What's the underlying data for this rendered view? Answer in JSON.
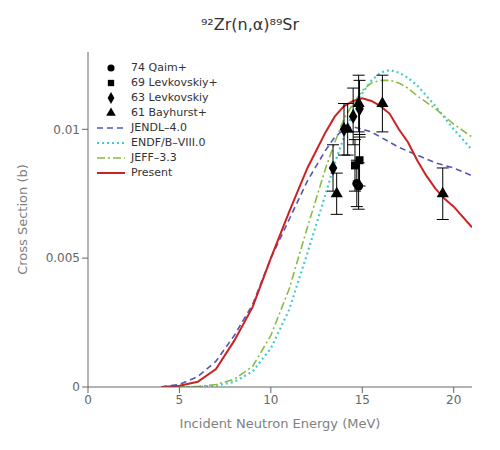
{
  "chart_data": {
    "type": "line",
    "title": "⁹²Zr(n,α)⁸⁹Sr",
    "xlabel": "Incident Neutron Energy (MeV)",
    "ylabel": "Cross Section (b)",
    "xlim": [
      0,
      21
    ],
    "ylim": [
      0,
      0.013
    ],
    "xticks": [
      0,
      5,
      10,
      15,
      20
    ],
    "yticks": [
      0,
      0.005,
      0.01
    ],
    "grid": false,
    "legend": "upper left",
    "series": [
      {
        "name": "JENDL–4.0",
        "type": "line",
        "color": "#5555bb",
        "line_style": "dashed",
        "x": [
          4.0,
          5.0,
          6.0,
          7.0,
          8.0,
          9.0,
          10.0,
          11.0,
          12.0,
          13.0,
          13.5,
          14.0,
          14.5,
          15.0,
          15.5,
          16.0,
          17.0,
          18.0,
          19.0,
          20.0,
          21.0
        ],
        "values": [
          0.0,
          0.0001,
          0.0004,
          0.001,
          0.002,
          0.0032,
          0.005,
          0.0065,
          0.008,
          0.0092,
          0.0097,
          0.01,
          0.0101,
          0.01,
          0.0099,
          0.0097,
          0.0093,
          0.009,
          0.0087,
          0.0085,
          0.0082
        ]
      },
      {
        "name": "ENDF/B–VIII.0",
        "type": "line",
        "color": "#44cccc",
        "line_style": "dotted",
        "x": [
          4.0,
          5.0,
          6.0,
          7.0,
          8.0,
          9.0,
          10.0,
          11.0,
          12.0,
          13.0,
          13.5,
          14.0,
          14.5,
          15.0,
          15.5,
          16.0,
          16.5,
          17.0,
          17.5,
          18.0,
          18.5,
          19.0,
          20.0,
          21.0
        ],
        "values": [
          0.0,
          0.0,
          0.0,
          5e-05,
          0.0002,
          0.0006,
          0.0015,
          0.003,
          0.0052,
          0.0075,
          0.0087,
          0.0097,
          0.0107,
          0.0114,
          0.0119,
          0.0122,
          0.0123,
          0.0122,
          0.012,
          0.0117,
          0.0113,
          0.0109,
          0.01,
          0.0092
        ]
      },
      {
        "name": "JEFF–3.3",
        "type": "line",
        "color": "#88bb44",
        "line_style": "dashdot",
        "x": [
          4.0,
          5.0,
          6.0,
          7.0,
          8.0,
          9.0,
          10.0,
          11.0,
          12.0,
          13.0,
          13.5,
          14.0,
          14.5,
          15.0,
          15.5,
          16.0,
          16.5,
          17.0,
          17.5,
          18.0,
          19.0,
          20.0,
          21.0
        ],
        "values": [
          0.0,
          0.0,
          2e-05,
          0.0001,
          0.0003,
          0.0008,
          0.002,
          0.0038,
          0.0062,
          0.0085,
          0.0095,
          0.0104,
          0.011,
          0.0115,
          0.0118,
          0.0119,
          0.0119,
          0.0118,
          0.0116,
          0.0113,
          0.0108,
          0.0102,
          0.0097
        ]
      },
      {
        "name": "Present",
        "type": "line",
        "color": "#cc2222",
        "line_style": "solid",
        "x": [
          4.0,
          5.0,
          6.0,
          7.0,
          8.0,
          9.0,
          10.0,
          11.0,
          12.0,
          12.5,
          13.0,
          13.5,
          14.0,
          14.5,
          15.0,
          15.5,
          16.0,
          16.5,
          17.0,
          17.5,
          18.0,
          18.5,
          19.0,
          19.5,
          20.0,
          21.0
        ],
        "values": [
          0.0,
          5e-05,
          0.0002,
          0.0007,
          0.0018,
          0.0031,
          0.005,
          0.0068,
          0.0085,
          0.0092,
          0.0099,
          0.0105,
          0.0109,
          0.0111,
          0.0112,
          0.0111,
          0.0109,
          0.0106,
          0.01,
          0.0095,
          0.0088,
          0.0082,
          0.0077,
          0.0073,
          0.007,
          0.0062
        ]
      },
      {
        "name": "74 Qaim+",
        "type": "scatter",
        "color": "black",
        "marker": "circle",
        "x": [
          14.7,
          14.8
        ],
        "values": [
          0.0079,
          0.0078
        ],
        "yerr": [
          0.0009,
          0.0009
        ]
      },
      {
        "name": "69 Levkovskiy+",
        "type": "scatter",
        "color": "black",
        "marker": "square",
        "x": [
          14.6,
          14.85
        ],
        "values": [
          0.0086,
          0.0088
        ],
        "yerr": [
          0.001,
          0.001
        ]
      },
      {
        "name": "63 Levkovskiy",
        "type": "scatter",
        "color": "black",
        "marker": "diamond",
        "x": [
          13.4,
          14.0,
          14.5,
          14.85
        ],
        "values": [
          0.0085,
          0.01,
          0.0105,
          0.0108
        ],
        "yerr": [
          0.0009,
          0.001,
          0.0011,
          0.0011
        ]
      },
      {
        "name": "61 Bayhurst+",
        "type": "scatter",
        "color": "black",
        "marker": "triangle",
        "x": [
          13.6,
          14.2,
          14.8,
          16.1,
          19.4
        ],
        "values": [
          0.0075,
          0.01,
          0.011,
          0.011,
          0.0075
        ],
        "yerr": [
          0.0008,
          0.001,
          0.0011,
          0.0011,
          0.001
        ]
      }
    ]
  }
}
